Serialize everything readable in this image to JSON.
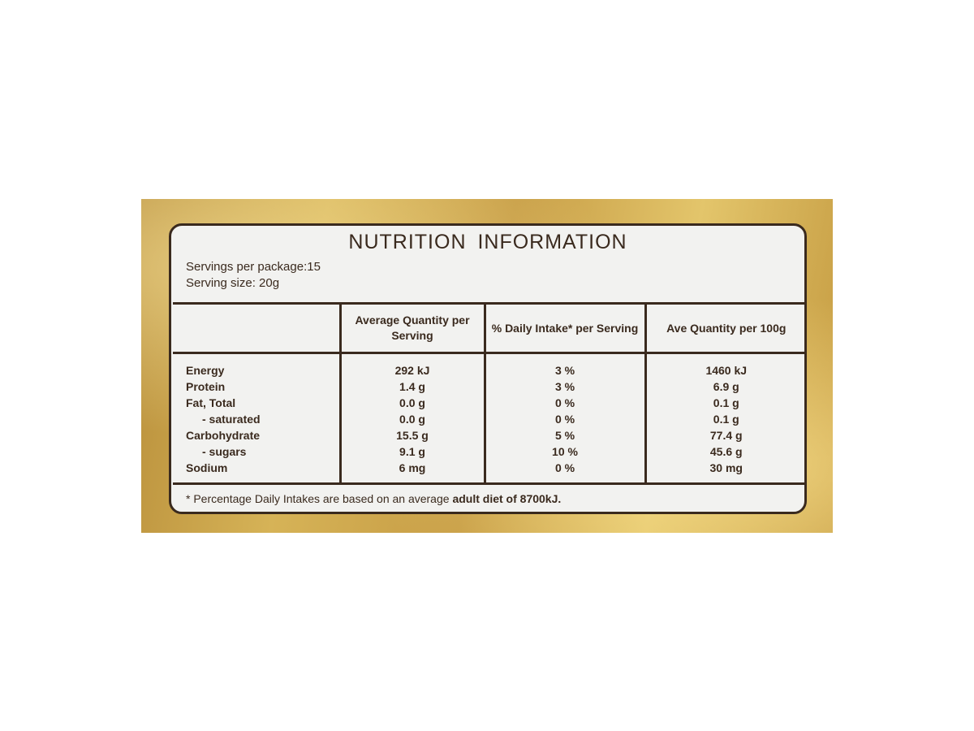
{
  "label": {
    "title": "NUTRITION INFORMATION",
    "servings_per_package": "Servings per package:15",
    "serving_size": "Serving size: 20g",
    "headers": [
      "",
      "Average Quantity per Serving",
      "% Daily Intake* per Serving",
      "Ave Quantity per 100g"
    ],
    "rows": [
      {
        "nutrient": "Energy",
        "per_serving": "292 kJ",
        "daily_intake": "3 %",
        "per_100g": "1460 kJ"
      },
      {
        "nutrient": "Protein",
        "per_serving": "1.4 g",
        "daily_intake": "3 %",
        "per_100g": "6.9 g"
      },
      {
        "nutrient": "Fat, Total",
        "per_serving": "0.0 g",
        "daily_intake": "0 %",
        "per_100g": "0.1 g"
      },
      {
        "nutrient": "- saturated",
        "per_serving": "0.0 g",
        "daily_intake": "0 %",
        "per_100g": "0.1 g"
      },
      {
        "nutrient": "Carbohydrate",
        "per_serving": "15.5 g",
        "daily_intake": "5 %",
        "per_100g": "77.4 g"
      },
      {
        "nutrient": "- sugars",
        "per_serving": "9.1 g",
        "daily_intake": "10 %",
        "per_100g": "45.6 g"
      },
      {
        "nutrient": "Sodium",
        "per_serving": "6 mg",
        "daily_intake": "0 %",
        "per_100g": "30 mg"
      }
    ],
    "footnote_prefix": "* Percentage Daily Intakes are based on an average ",
    "footnote_bold": "adult diet of 8700kJ."
  },
  "colors": {
    "ink": "#3a2a1e",
    "label_bg": "#f2f2f0",
    "packaging_gold": "#c9a24a"
  }
}
